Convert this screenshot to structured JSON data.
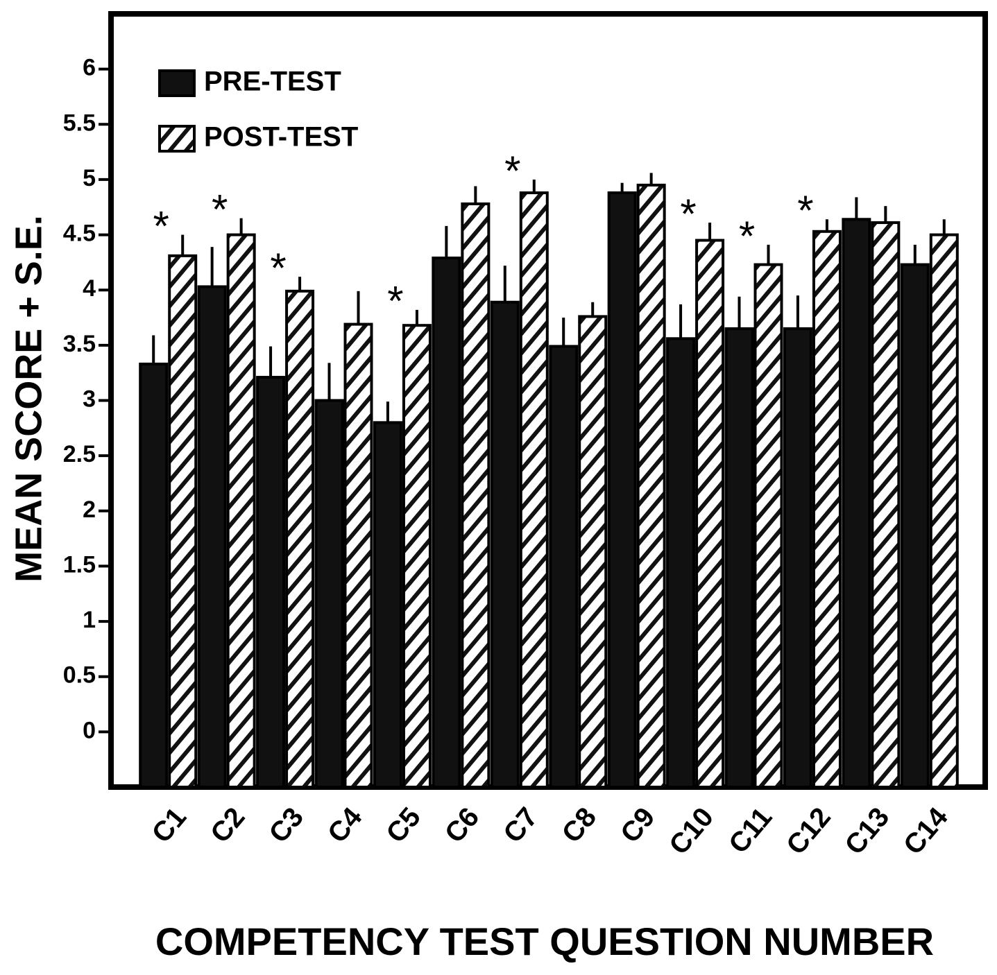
{
  "chart_data": {
    "type": "bar",
    "x_label": "COMPETENCY TEST QUESTION NUMBER",
    "y_label": "MEAN SCORE + S.E.",
    "categories": [
      "C1",
      "C2",
      "C3",
      "C4",
      "C5",
      "C6",
      "C7",
      "C8",
      "C9",
      "C10",
      "C11",
      "C12",
      "C13",
      "C14"
    ],
    "series": [
      {
        "name": "PRE-TEST",
        "color": "#111111",
        "hatch": false,
        "values": [
          3.33,
          4.03,
          3.21,
          3.0,
          2.8,
          4.29,
          3.89,
          3.49,
          4.88,
          3.56,
          3.65,
          3.65,
          4.64,
          4.23
        ],
        "errors": [
          0.26,
          0.36,
          0.28,
          0.34,
          0.19,
          0.29,
          0.33,
          0.26,
          0.09,
          0.31,
          0.29,
          0.3,
          0.2,
          0.18
        ]
      },
      {
        "name": "POST-TEST",
        "color": "#111111",
        "hatch": true,
        "values": [
          4.31,
          4.5,
          3.99,
          3.69,
          3.68,
          4.78,
          4.88,
          3.76,
          4.95,
          4.45,
          4.23,
          4.53,
          4.61,
          4.5
        ],
        "errors": [
          0.19,
          0.15,
          0.13,
          0.3,
          0.14,
          0.16,
          0.12,
          0.13,
          0.11,
          0.16,
          0.18,
          0.11,
          0.15,
          0.14
        ]
      }
    ],
    "annotations": [
      {
        "text": "*",
        "x": "C1"
      },
      {
        "text": "*",
        "x": "C2"
      },
      {
        "text": "*",
        "x": "C3"
      },
      {
        "text": "*",
        "x": "C5"
      },
      {
        "text": "*",
        "x": "C7"
      },
      {
        "text": "*",
        "x": "C10"
      },
      {
        "text": "*",
        "x": "C11"
      },
      {
        "text": "*",
        "x": "C12"
      }
    ],
    "ylim": [
      -0.5,
      6.5
    ],
    "yticks": [
      0,
      0.5,
      1,
      1.5,
      2,
      2.5,
      3,
      3.5,
      4,
      4.5,
      5,
      5.5,
      6
    ],
    "legend": "upper left",
    "grid": false
  }
}
